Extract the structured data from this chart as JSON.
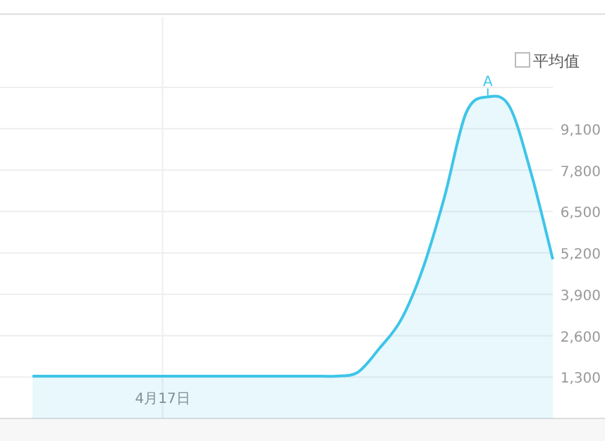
{
  "chart_data": {
    "type": "area",
    "categories": [
      null,
      null,
      null,
      null,
      null,
      null,
      "4月17日",
      null,
      null,
      null,
      null,
      null,
      null,
      null,
      null,
      null,
      null,
      null,
      null,
      null,
      null,
      null,
      null,
      null,
      null
    ],
    "series": [
      {
        "color": "#3ec5e8",
        "values": [
          1330,
          1330,
          1330,
          1330,
          1330,
          1330,
          1330,
          1330,
          1330,
          1330,
          1330,
          1330,
          1330,
          1330,
          1330,
          1450,
          2200,
          3100,
          4700,
          6950,
          9600,
          10100,
          9800,
          7700,
          5000
        ]
      }
    ],
    "ylim": [
      0,
      10400
    ],
    "yticks": [
      {
        "value": 1300,
        "label": "1,300"
      },
      {
        "value": 2600,
        "label": "2,600"
      },
      {
        "value": 3900,
        "label": "3,900"
      },
      {
        "value": 5200,
        "label": "5,200"
      },
      {
        "value": 6500,
        "label": "6,500"
      },
      {
        "value": 7800,
        "label": "7,800"
      },
      {
        "value": 9100,
        "label": "9,100"
      },
      {
        "value": 10400,
        "label": null
      }
    ],
    "grid": true,
    "annotations": [
      "平均值",
      {
        "text": "A",
        "y": 10100
      }
    ]
  }
}
